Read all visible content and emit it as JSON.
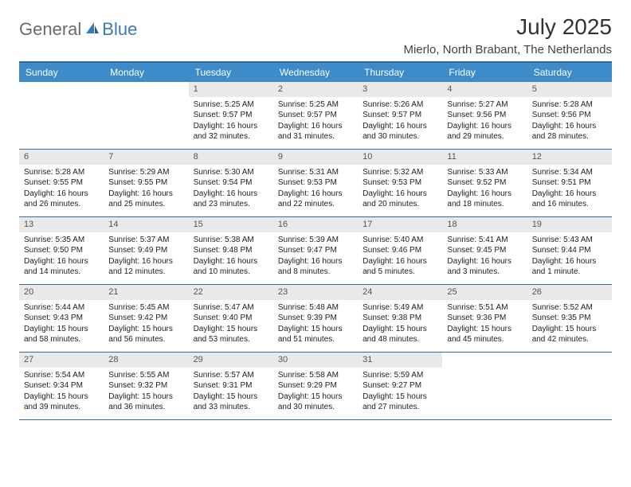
{
  "logo": {
    "general": "General",
    "blue": "Blue"
  },
  "title": "July 2025",
  "location": "Mierlo, North Brabant, The Netherlands",
  "day_headers": [
    "Sunday",
    "Monday",
    "Tuesday",
    "Wednesday",
    "Thursday",
    "Friday",
    "Saturday"
  ],
  "colors": {
    "header_bg": "#3d8bc9",
    "border": "#2d6aa8",
    "daynum_bg": "#e9e9e9",
    "logo_general": "#6a6a6a",
    "logo_blue": "#3a7ab8"
  },
  "weeks": [
    [
      null,
      null,
      {
        "n": "1",
        "sr": "5:25 AM",
        "ss": "9:57 PM",
        "dl": "16 hours and 32 minutes."
      },
      {
        "n": "2",
        "sr": "5:25 AM",
        "ss": "9:57 PM",
        "dl": "16 hours and 31 minutes."
      },
      {
        "n": "3",
        "sr": "5:26 AM",
        "ss": "9:57 PM",
        "dl": "16 hours and 30 minutes."
      },
      {
        "n": "4",
        "sr": "5:27 AM",
        "ss": "9:56 PM",
        "dl": "16 hours and 29 minutes."
      },
      {
        "n": "5",
        "sr": "5:28 AM",
        "ss": "9:56 PM",
        "dl": "16 hours and 28 minutes."
      }
    ],
    [
      {
        "n": "6",
        "sr": "5:28 AM",
        "ss": "9:55 PM",
        "dl": "16 hours and 26 minutes."
      },
      {
        "n": "7",
        "sr": "5:29 AM",
        "ss": "9:55 PM",
        "dl": "16 hours and 25 minutes."
      },
      {
        "n": "8",
        "sr": "5:30 AM",
        "ss": "9:54 PM",
        "dl": "16 hours and 23 minutes."
      },
      {
        "n": "9",
        "sr": "5:31 AM",
        "ss": "9:53 PM",
        "dl": "16 hours and 22 minutes."
      },
      {
        "n": "10",
        "sr": "5:32 AM",
        "ss": "9:53 PM",
        "dl": "16 hours and 20 minutes."
      },
      {
        "n": "11",
        "sr": "5:33 AM",
        "ss": "9:52 PM",
        "dl": "16 hours and 18 minutes."
      },
      {
        "n": "12",
        "sr": "5:34 AM",
        "ss": "9:51 PM",
        "dl": "16 hours and 16 minutes."
      }
    ],
    [
      {
        "n": "13",
        "sr": "5:35 AM",
        "ss": "9:50 PM",
        "dl": "16 hours and 14 minutes."
      },
      {
        "n": "14",
        "sr": "5:37 AM",
        "ss": "9:49 PM",
        "dl": "16 hours and 12 minutes."
      },
      {
        "n": "15",
        "sr": "5:38 AM",
        "ss": "9:48 PM",
        "dl": "16 hours and 10 minutes."
      },
      {
        "n": "16",
        "sr": "5:39 AM",
        "ss": "9:47 PM",
        "dl": "16 hours and 8 minutes."
      },
      {
        "n": "17",
        "sr": "5:40 AM",
        "ss": "9:46 PM",
        "dl": "16 hours and 5 minutes."
      },
      {
        "n": "18",
        "sr": "5:41 AM",
        "ss": "9:45 PM",
        "dl": "16 hours and 3 minutes."
      },
      {
        "n": "19",
        "sr": "5:43 AM",
        "ss": "9:44 PM",
        "dl": "16 hours and 1 minute."
      }
    ],
    [
      {
        "n": "20",
        "sr": "5:44 AM",
        "ss": "9:43 PM",
        "dl": "15 hours and 58 minutes."
      },
      {
        "n": "21",
        "sr": "5:45 AM",
        "ss": "9:42 PM",
        "dl": "15 hours and 56 minutes."
      },
      {
        "n": "22",
        "sr": "5:47 AM",
        "ss": "9:40 PM",
        "dl": "15 hours and 53 minutes."
      },
      {
        "n": "23",
        "sr": "5:48 AM",
        "ss": "9:39 PM",
        "dl": "15 hours and 51 minutes."
      },
      {
        "n": "24",
        "sr": "5:49 AM",
        "ss": "9:38 PM",
        "dl": "15 hours and 48 minutes."
      },
      {
        "n": "25",
        "sr": "5:51 AM",
        "ss": "9:36 PM",
        "dl": "15 hours and 45 minutes."
      },
      {
        "n": "26",
        "sr": "5:52 AM",
        "ss": "9:35 PM",
        "dl": "15 hours and 42 minutes."
      }
    ],
    [
      {
        "n": "27",
        "sr": "5:54 AM",
        "ss": "9:34 PM",
        "dl": "15 hours and 39 minutes."
      },
      {
        "n": "28",
        "sr": "5:55 AM",
        "ss": "9:32 PM",
        "dl": "15 hours and 36 minutes."
      },
      {
        "n": "29",
        "sr": "5:57 AM",
        "ss": "9:31 PM",
        "dl": "15 hours and 33 minutes."
      },
      {
        "n": "30",
        "sr": "5:58 AM",
        "ss": "9:29 PM",
        "dl": "15 hours and 30 minutes."
      },
      {
        "n": "31",
        "sr": "5:59 AM",
        "ss": "9:27 PM",
        "dl": "15 hours and 27 minutes."
      },
      null,
      null
    ]
  ],
  "labels": {
    "sunrise": "Sunrise:",
    "sunset": "Sunset:",
    "daylight": "Daylight:"
  }
}
